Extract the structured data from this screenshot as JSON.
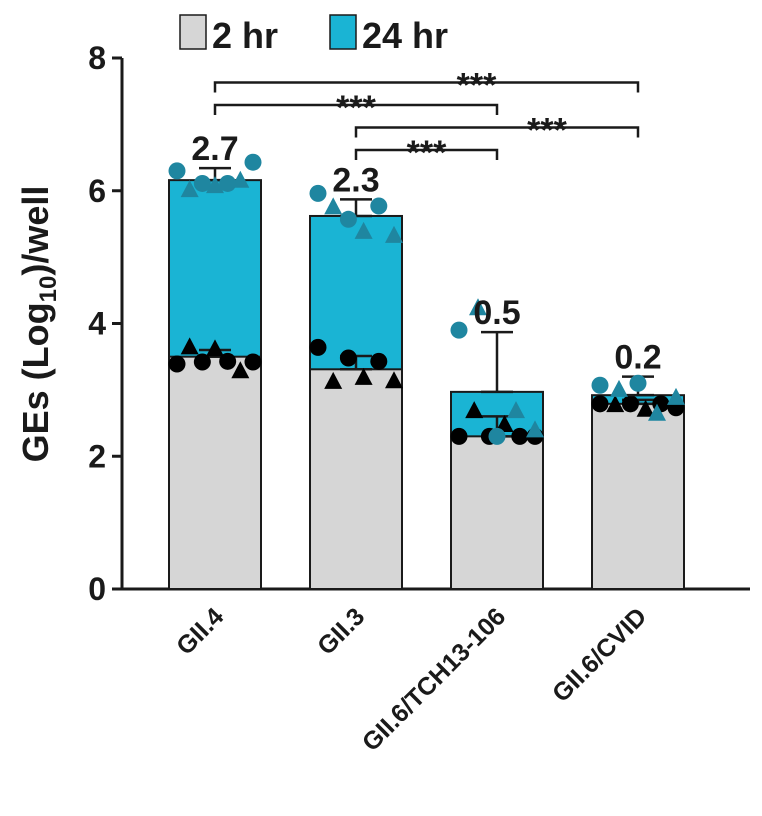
{
  "chart_data": {
    "type": "bar",
    "ylabel": [
      "GEs (Log",
      "10",
      ")/well"
    ],
    "categories": [
      "GII.4",
      "GII.3",
      "GII.6/TCH13-106",
      "GII.6/CVID"
    ],
    "ylim": [
      0,
      8
    ],
    "yticks": [
      0,
      2,
      4,
      6,
      8
    ],
    "series": [
      {
        "name": "2 hr",
        "color": "#d6d6d6",
        "point_color": "#000000",
        "values": [
          3.5,
          3.31,
          2.3,
          2.79
        ],
        "errors": [
          0.1,
          0.2,
          0.3,
          0.06
        ],
        "circles": [
          [
            3.39,
            3.42,
            3.43,
            3.42
          ],
          [
            3.64,
            3.48,
            3.43
          ],
          [
            2.3,
            2.3,
            2.3,
            2.3
          ],
          [
            2.79,
            2.79,
            2.79,
            2.73
          ]
        ],
        "triangles": [
          [
            3.64,
            3.61,
            3.28
          ],
          [
            3.12,
            3.18,
            3.13
          ],
          [
            2.68,
            2.47
          ],
          [
            2.77,
            2.7
          ]
        ]
      },
      {
        "name": "24 hr",
        "color": "#1ab4d4",
        "point_color": "#1f86a0",
        "values": [
          6.16,
          5.62,
          2.97,
          2.92
        ],
        "errors": [
          0.18,
          0.25,
          0.9,
          0.28
        ],
        "circles": [
          [
            6.3,
            6.11,
            6.11,
            6.43
          ],
          [
            5.96,
            5.57,
            5.77
          ],
          [
            3.9,
            2.3
          ],
          [
            3.07,
            3.1
          ]
        ],
        "triangles": [
          [
            6.01,
            6.07,
            6.15
          ],
          [
            5.75,
            5.38,
            5.32
          ],
          [
            4.23,
            2.68,
            2.39
          ],
          [
            3.0,
            2.64,
            2.88
          ]
        ]
      }
    ],
    "annotations": [
      "2.7",
      "2.3",
      "0.5",
      "0.2"
    ],
    "significance": [
      {
        "pair": [
          1,
          2
        ],
        "label": "***"
      },
      {
        "pair": [
          1,
          3
        ],
        "label": "***"
      },
      {
        "pair": [
          0,
          2
        ],
        "label": "***"
      },
      {
        "pair": [
          0,
          3
        ],
        "label": "***"
      }
    ]
  }
}
